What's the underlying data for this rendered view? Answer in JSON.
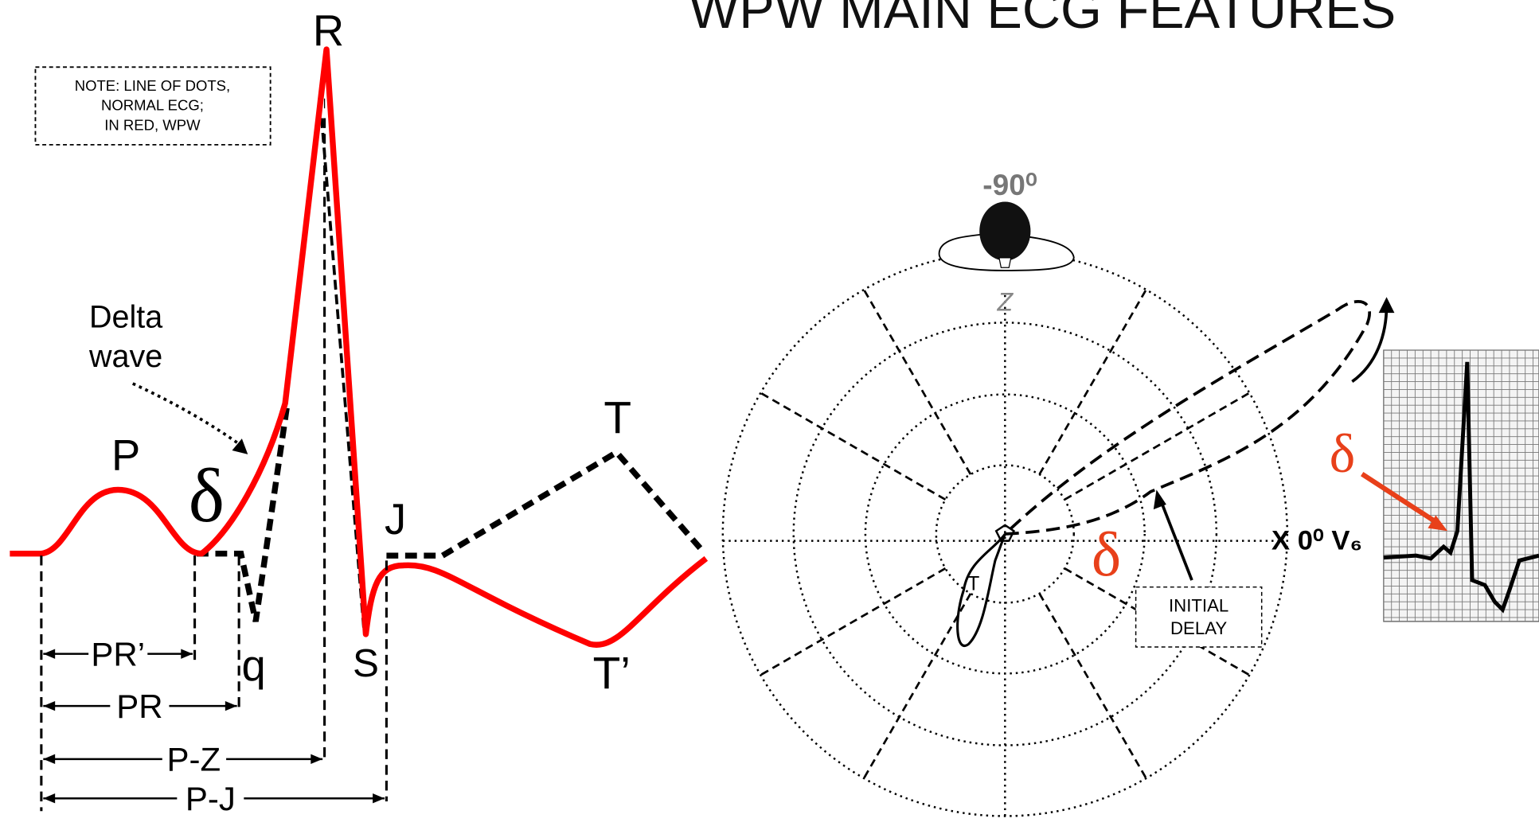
{
  "title": "WPW MAIN ECG FEATURES",
  "note": {
    "lines": [
      "NOTE: LINE OF DOTS,",
      "NORMAL ECG;",
      "IN RED, WPW"
    ]
  },
  "left_diagram": {
    "waves": {
      "r": "R",
      "p": "P",
      "delta": "δ",
      "q": "q",
      "s": "S",
      "j": "J",
      "t": "T",
      "t_prime": "T’"
    },
    "delta_wave_label": [
      "Delta",
      "wave"
    ],
    "intervals": {
      "pr_prime": "PR’",
      "pr": "PR",
      "p_z": "P-Z",
      "p_j": "P-J"
    }
  },
  "right_diagram": {
    "angle_top": "-90⁰",
    "axis_z": "Z",
    "loop_t": "T",
    "delta": "δ",
    "initial_delay": [
      "INITIAL",
      "DELAY"
    ],
    "axis_x": "X 0⁰ V₆",
    "strip_delta": "δ"
  }
}
